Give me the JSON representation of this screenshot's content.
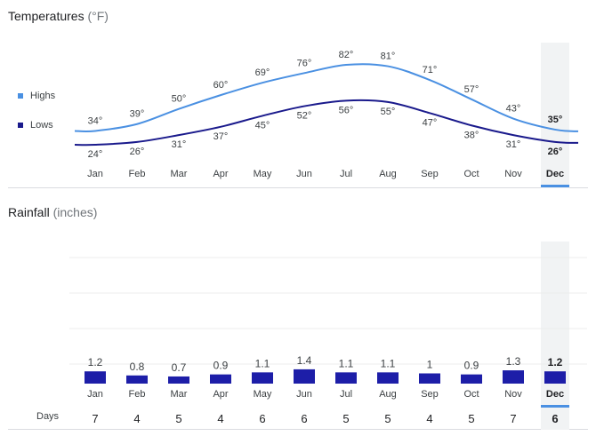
{
  "temperature": {
    "title": "Temperatures",
    "unit": "(°F)",
    "legend": {
      "highs": "Highs",
      "lows": "Lows"
    },
    "colors": {
      "highs": "#4a90e2",
      "lows": "#1a1a8c"
    }
  },
  "rainfall": {
    "title": "Rainfall",
    "unit": "(inches)",
    "bar_color": "#1d1ea8",
    "days_label": "Days"
  },
  "selected_month_index": 11,
  "chart_data": [
    {
      "type": "line",
      "title": "Temperatures (°F)",
      "categories": [
        "Jan",
        "Feb",
        "Mar",
        "Apr",
        "May",
        "Jun",
        "Jul",
        "Aug",
        "Sep",
        "Oct",
        "Nov",
        "Dec"
      ],
      "series": [
        {
          "name": "Highs",
          "values": [
            34,
            39,
            50,
            60,
            69,
            76,
            82,
            81,
            71,
            57,
            43,
            35
          ],
          "labels": [
            "34°",
            "39°",
            "50°",
            "60°",
            "69°",
            "76°",
            "82°",
            "81°",
            "71°",
            "57°",
            "43°",
            "35°"
          ]
        },
        {
          "name": "Lows",
          "values": [
            24,
            26,
            31,
            37,
            45,
            52,
            56,
            55,
            47,
            38,
            31,
            26
          ],
          "labels": [
            "24°",
            "26°",
            "31°",
            "37°",
            "45°",
            "52°",
            "56°",
            "55°",
            "47°",
            "38°",
            "31°",
            "26°"
          ]
        }
      ],
      "xlabel": "",
      "ylabel": "",
      "grid": false,
      "legend": "left"
    },
    {
      "type": "bar",
      "title": "Rainfall (inches)",
      "categories": [
        "Jan",
        "Feb",
        "Mar",
        "Apr",
        "May",
        "Jun",
        "Jul",
        "Aug",
        "Sep",
        "Oct",
        "Nov",
        "Dec"
      ],
      "values": [
        1.2,
        0.8,
        0.7,
        0.9,
        1.1,
        1.4,
        1.1,
        1.1,
        1,
        0.9,
        1.3,
        1.2
      ],
      "labels": [
        "1.2",
        "0.8",
        "0.7",
        "0.9",
        "1.1",
        "1.4",
        "1.1",
        "1.1",
        "1",
        "0.9",
        "1.3",
        "1.2"
      ],
      "days": [
        "7",
        "4",
        "5",
        "4",
        "6",
        "6",
        "5",
        "5",
        "4",
        "5",
        "7",
        "6"
      ],
      "xlabel": "",
      "ylabel": "",
      "grid": true
    }
  ]
}
